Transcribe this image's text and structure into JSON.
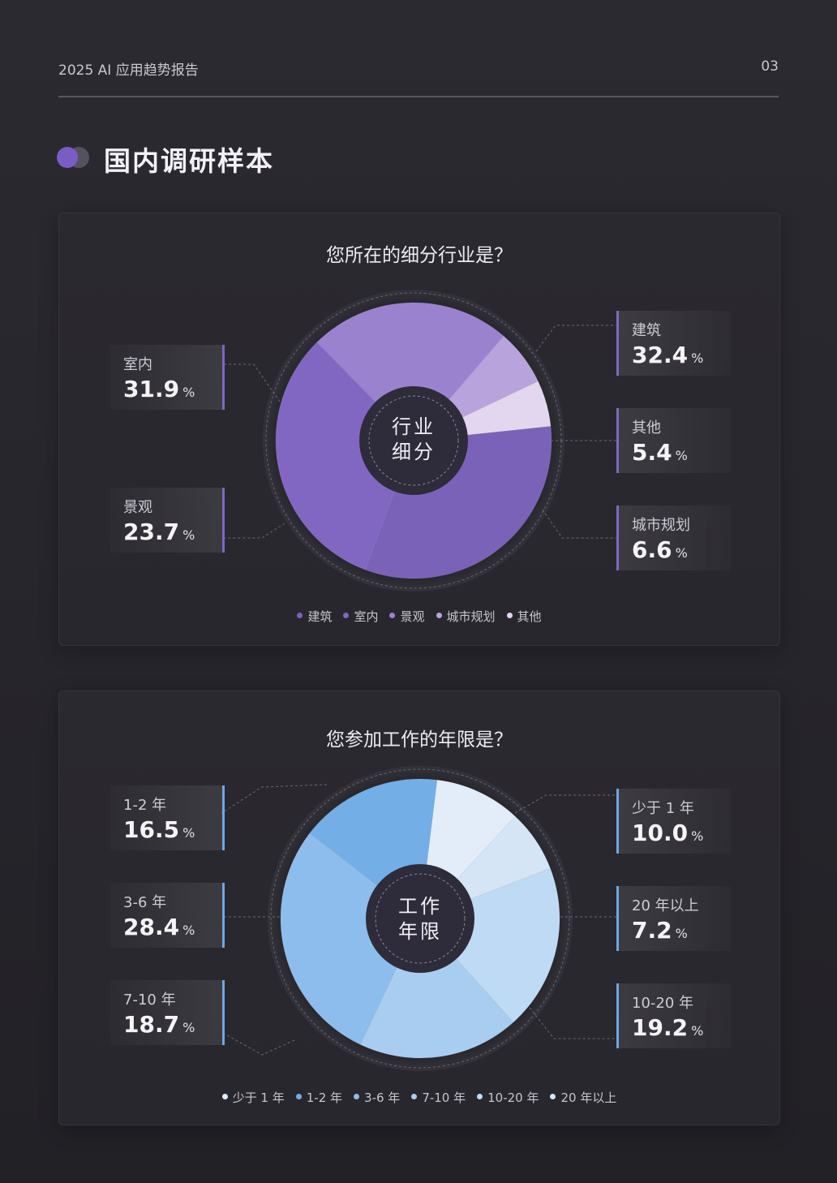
{
  "header": {
    "report_title": "2025 AI 应用趋势报告",
    "page_number": "03"
  },
  "section": {
    "title": "国内调研样本"
  },
  "charts": {
    "industry": {
      "question": "您所在的细分行业是？",
      "center_line1": "行业",
      "center_line2": "细分",
      "unit": "%",
      "labels": [
        {
          "name": "建筑",
          "value": "32.4"
        },
        {
          "name": "其他",
          "value": "5.4"
        },
        {
          "name": "城市规划",
          "value": "6.6"
        },
        {
          "name": "室内",
          "value": "31.9"
        },
        {
          "name": "景观",
          "value": "23.7"
        }
      ]
    },
    "years": {
      "question": "您参加工作的年限是？",
      "center_line1": "工作",
      "center_line2": "年限",
      "unit": "%",
      "labels": [
        {
          "name": "少于 1 年",
          "value": "10.0"
        },
        {
          "name": "20 年以上",
          "value": "7.2"
        },
        {
          "name": "10-20 年",
          "value": "19.2"
        },
        {
          "name": "1-2 年",
          "value": "16.5"
        },
        {
          "name": "3-6 年",
          "value": "28.4"
        },
        {
          "name": "7-10 年",
          "value": "18.7"
        }
      ]
    }
  },
  "chart_data": [
    {
      "type": "pie",
      "title": "您所在的细分行业是？",
      "categories": [
        "建筑",
        "室内",
        "景观",
        "城市规划",
        "其他"
      ],
      "values": [
        32.4,
        31.9,
        23.7,
        6.6,
        5.4
      ],
      "colors": [
        "#7a62b8",
        "#8267c2",
        "#9a82cf",
        "#b8a3dc",
        "#e3d7f0"
      ],
      "legend": "bottom"
    },
    {
      "type": "pie",
      "title": "您参加工作的年限是？",
      "categories": [
        "少于 1 年",
        "1-2 年",
        "3-6 年",
        "7-10 年",
        "10-20 年",
        "20 年以上"
      ],
      "values": [
        10.0,
        16.5,
        28.4,
        18.7,
        19.2,
        7.2
      ],
      "colors": [
        "#e3ecf9",
        "#73aee6",
        "#8dbdec",
        "#a9cdf0",
        "#bfdaf4",
        "#d5e5f6"
      ],
      "legend": "bottom"
    }
  ]
}
